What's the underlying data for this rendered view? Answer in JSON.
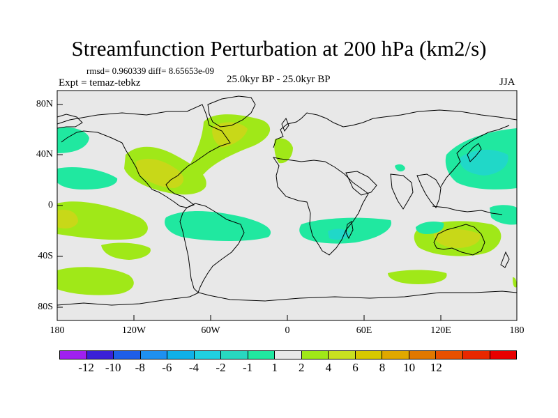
{
  "title": "Streamfunction Perturbation at 200 hPa (km2/s)",
  "stats": "rmsd= 0.960339 diff= 8.65653e-09",
  "expt": "Expt = temaz-tebkz",
  "period": "25.0kyr BP - 25.0kyr BP",
  "season": "JJA",
  "lat_labels": [
    "80N",
    "40N",
    "0",
    "40S",
    "80S"
  ],
  "lon_labels": [
    "180",
    "120W",
    "60W",
    "0",
    "60E",
    "120E",
    "180"
  ],
  "colorbar": {
    "colors": [
      "#a020f0",
      "#3a20d8",
      "#1e5ee8",
      "#1e90f0",
      "#10b0e8",
      "#20d0e0",
      "#28d8c0",
      "#20e8a0",
      "#e8e8e8",
      "#a0e818",
      "#c8e020",
      "#d8c800",
      "#e0a800",
      "#e07800",
      "#e85000",
      "#e82800",
      "#e80000"
    ],
    "labels": [
      "-12",
      "-10",
      "-8",
      "-6",
      "-4",
      "-2",
      "-1",
      "1",
      "2",
      "4",
      "6",
      "8",
      "10",
      "12"
    ]
  },
  "colors": {
    "background": "#e8e8e8",
    "positive_light": "#a0e818",
    "positive_mid": "#c8d818",
    "positive_high": "#d8b800",
    "negative_light": "#20e8a0",
    "negative_mid": "#20d8c8",
    "negative_high": "#10c0e0"
  }
}
